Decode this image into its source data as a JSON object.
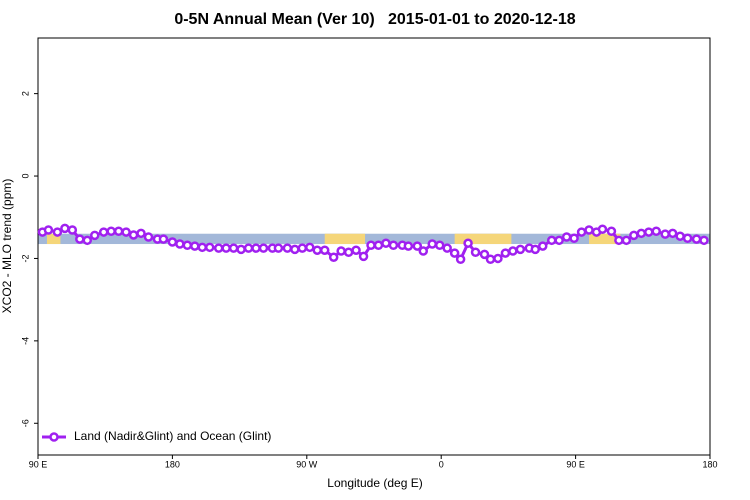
{
  "chart_data": {
    "type": "line",
    "title": "0-5N Annual Mean (Ver 10)   2015-01-01 to 2020-12-18",
    "xlabel": "Longitude (deg E)",
    "ylabel": "XCO2 - MLO trend (ppm)",
    "xlim": [
      90,
      540
    ],
    "ylim": [
      -6.77,
      3.35
    ],
    "xticks": [
      {
        "value": 90,
        "label": "90 E"
      },
      180,
      {
        "value": 270,
        "label": "90 W"
      },
      {
        "value": 360,
        "label": "0"
      },
      {
        "value": 450,
        "label": "90 E"
      },
      {
        "value": 540,
        "label": "180"
      }
    ],
    "yticks": [
      -6,
      -4,
      -2,
      0,
      2
    ],
    "legend": "bottom-left",
    "mask": {
      "ylim": [
        -1.65,
        -1.4
      ],
      "ocean_color": "#a3b8d9",
      "land_color": "#f5d67a",
      "land": [
        [
          96,
          105
        ],
        [
          282,
          309
        ],
        [
          369,
          407
        ],
        [
          459,
          480
        ]
      ]
    },
    "x": [
      93,
      97,
      103,
      108,
      113,
      118,
      123,
      128,
      134,
      139,
      144,
      149,
      154,
      159,
      164,
      170,
      174,
      180,
      185,
      190,
      195,
      200,
      205,
      211,
      216,
      221,
      226,
      231,
      236,
      241,
      247,
      251,
      257,
      262,
      267,
      272,
      277,
      282,
      288,
      293,
      298,
      303,
      308,
      313,
      318,
      323,
      328,
      334,
      338,
      344,
      348,
      354,
      359,
      364,
      369,
      373,
      378,
      383,
      389,
      393,
      398,
      403,
      408,
      413,
      419,
      423,
      428,
      434,
      439,
      444,
      449,
      454,
      459,
      464,
      468,
      474,
      479,
      484,
      489,
      494,
      499,
      504,
      510,
      515,
      520,
      525,
      531,
      536
    ],
    "series": [
      {
        "name": "Land (Nadir&Glint) and Ocean (Glint)",
        "color": "#a020f0",
        "values": [
          -1.36,
          -1.31,
          -1.36,
          -1.27,
          -1.31,
          -1.53,
          -1.56,
          -1.44,
          -1.36,
          -1.34,
          -1.34,
          -1.36,
          -1.43,
          -1.39,
          -1.48,
          -1.53,
          -1.53,
          -1.6,
          -1.65,
          -1.68,
          -1.7,
          -1.73,
          -1.73,
          -1.75,
          -1.75,
          -1.75,
          -1.78,
          -1.75,
          -1.75,
          -1.75,
          -1.75,
          -1.75,
          -1.75,
          -1.78,
          -1.75,
          -1.73,
          -1.8,
          -1.8,
          -1.97,
          -1.82,
          -1.85,
          -1.8,
          -1.95,
          -1.68,
          -1.68,
          -1.63,
          -1.68,
          -1.68,
          -1.7,
          -1.7,
          -1.82,
          -1.65,
          -1.68,
          -1.75,
          -1.87,
          -2.02,
          -1.63,
          -1.85,
          -1.9,
          -2.02,
          -2.0,
          -1.87,
          -1.82,
          -1.78,
          -1.75,
          -1.78,
          -1.7,
          -1.56,
          -1.56,
          -1.48,
          -1.51,
          -1.36,
          -1.31,
          -1.36,
          -1.29,
          -1.34,
          -1.56,
          -1.56,
          -1.44,
          -1.39,
          -1.36,
          -1.34,
          -1.41,
          -1.39,
          -1.46,
          -1.51,
          -1.53,
          -1.56
        ]
      }
    ]
  }
}
